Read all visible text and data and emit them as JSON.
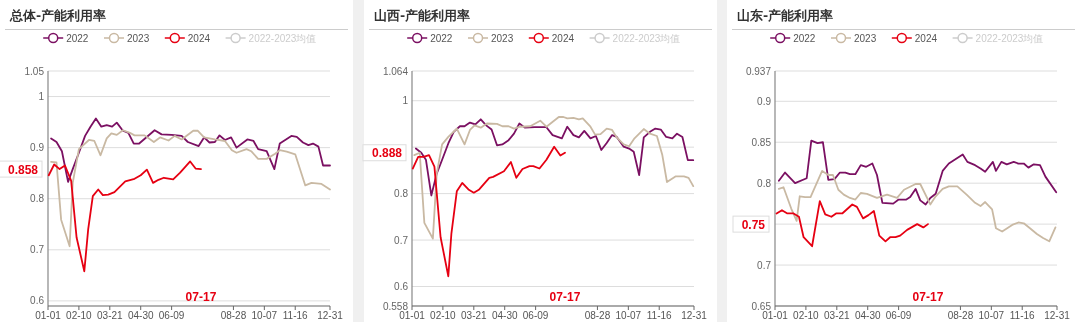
{
  "chart_data": [
    {
      "type": "line",
      "title": "总体-产能利用率",
      "grid": "y",
      "legend": "top",
      "xlim": [
        "--01-01",
        "--12-31"
      ],
      "xticks": [
        {
          "value": "--01-01",
          "label": "01-01"
        },
        {
          "value": "--02-10",
          "label": "02-10"
        },
        {
          "value": "--03-21",
          "label": "03-21"
        },
        {
          "value": "--04-30",
          "label": "04-30"
        },
        {
          "value": "--06-09",
          "label": "06-09"
        },
        {
          "value": "--08-28",
          "label": "08-28"
        },
        {
          "value": "--10-07",
          "label": "10-07"
        },
        {
          "value": "--11-16",
          "label": "11-16"
        },
        {
          "value": "--12-31",
          "label": "12-31"
        }
      ],
      "ylim": [
        0.59,
        1.05
      ],
      "yticks": [
        0.6,
        0.7,
        0.8,
        0.9,
        1,
        1.05
      ],
      "annotations": [
        "0.858",
        "07-17"
      ],
      "series": [
        {
          "name": "2022",
          "color": "#7b1062",
          "x": [
            "--01-05",
            "--01-12",
            "--01-19",
            "--01-27",
            "--02-02",
            "--02-10",
            "--02-18",
            "--02-25",
            "--03-03",
            "--03-10",
            "--03-17",
            "--03-24",
            "--03-30",
            "--04-07",
            "--04-14",
            "--04-21",
            "--04-28",
            "--05-18",
            "--05-27",
            "--06-09",
            "--06-22",
            "--06-30",
            "--07-14",
            "--07-21",
            "--07-28",
            "--08-04",
            "--08-10",
            "--08-17",
            "--08-25",
            "--09-01",
            "--09-15",
            "--09-23",
            "--09-29",
            "--10-10",
            "--10-20",
            "--10-27",
            "--11-11",
            "--11-18",
            "--11-26",
            "--12-03",
            "--12-09",
            "--12-16",
            "--12-22",
            "--12-31"
          ],
          "values": [
            0.918,
            0.911,
            0.893,
            0.833,
            0.858,
            0.89,
            0.923,
            0.941,
            0.957,
            0.941,
            0.944,
            0.941,
            0.949,
            0.933,
            0.929,
            0.908,
            0.908,
            0.934,
            0.926,
            0.925,
            0.923,
            0.911,
            0.903,
            0.92,
            0.91,
            0.911,
            0.924,
            0.915,
            0.92,
            0.9,
            0.916,
            0.913,
            0.897,
            0.893,
            0.858,
            0.908,
            0.923,
            0.921,
            0.91,
            0.905,
            0.908,
            0.902,
            0.865,
            0.865
          ]
        },
        {
          "name": "2023",
          "color": "#c9b9a3",
          "x": [
            "--01-05",
            "--01-12",
            "--01-18",
            "--01-29",
            "--02-02",
            "--02-10",
            "--02-23",
            "--03-01",
            "--03-09",
            "--03-17",
            "--03-23",
            "--03-30",
            "--04-07",
            "--04-16",
            "--04-22",
            "--05-05",
            "--05-17",
            "--05-25",
            "--06-05",
            "--06-13",
            "--06-22",
            "--07-07",
            "--07-13",
            "--07-21",
            "--08-04",
            "--08-17",
            "--08-26",
            "--09-01",
            "--09-14",
            "--09-20",
            "--09-29",
            "--10-10",
            "--10-21",
            "--10-27",
            "--11-05",
            "--11-16",
            "--11-29",
            "--12-07",
            "--12-20",
            "--12-31"
          ],
          "values": [
            0.872,
            0.871,
            0.759,
            0.707,
            0.831,
            0.897,
            0.915,
            0.913,
            0.885,
            0.918,
            0.928,
            0.925,
            0.934,
            0.929,
            0.924,
            0.924,
            0.911,
            0.92,
            0.914,
            0.923,
            0.916,
            0.933,
            0.933,
            0.92,
            0.916,
            0.913,
            0.895,
            0.89,
            0.897,
            0.893,
            0.878,
            0.878,
            0.888,
            0.895,
            0.892,
            0.887,
            0.826,
            0.831,
            0.829,
            0.818
          ]
        },
        {
          "name": "2024",
          "color": "#e60012",
          "x": [
            "--01-02",
            "--01-09",
            "--01-16",
            "--01-23",
            "--01-31",
            "--02-07",
            "--02-17",
            "--02-22",
            "--02-28",
            "--03-06",
            "--03-12",
            "--03-19",
            "--03-27",
            "--04-10",
            "--04-22",
            "--04-30",
            "--05-08",
            "--05-16",
            "--05-23",
            "--05-30",
            "--06-11",
            "--06-20",
            "--07-03",
            "--07-10",
            "--07-17"
          ],
          "values": [
            0.846,
            0.867,
            0.858,
            0.865,
            0.835,
            0.724,
            0.658,
            0.74,
            0.805,
            0.818,
            0.807,
            0.808,
            0.813,
            0.834,
            0.839,
            0.846,
            0.857,
            0.831,
            0.837,
            0.841,
            0.838,
            0.851,
            0.873,
            0.859,
            0.858
          ]
        },
        {
          "name": "2022-2023均值",
          "color": "#cccccc"
        }
      ]
    },
    {
      "type": "line",
      "title": "山西-产能利用率",
      "grid": "y",
      "legend": "top",
      "xlim": [
        "--01-01",
        "--12-31"
      ],
      "xticks": [
        {
          "value": "--01-01",
          "label": "01-01"
        },
        {
          "value": "--02-10",
          "label": "02-10"
        },
        {
          "value": "--03-21",
          "label": "03-21"
        },
        {
          "value": "--04-30",
          "label": "04-30"
        },
        {
          "value": "--06-09",
          "label": "06-09"
        },
        {
          "value": "--08-28",
          "label": "08-28"
        },
        {
          "value": "--10-07",
          "label": "10-07"
        },
        {
          "value": "--11-16",
          "label": "11-16"
        },
        {
          "value": "--12-31",
          "label": "12-31"
        }
      ],
      "ylim": [
        0.558,
        1.064
      ],
      "yticks": [
        0.558,
        0.6,
        0.7,
        0.8,
        {
          "value": 0.9,
          "label": null
        },
        1,
        1.064
      ],
      "annotations": [
        "0.888",
        "07-17"
      ],
      "series": [
        {
          "name": "2022",
          "color": "#7b1062",
          "x": [
            "--01-06",
            "--01-13",
            "--01-19",
            "--01-26",
            "--02-02",
            "--02-09",
            "--02-17",
            "--02-24",
            "--03-03",
            "--03-09",
            "--03-16",
            "--03-23",
            "--03-30",
            "--04-06",
            "--04-13",
            "--04-20",
            "--04-27",
            "--05-05",
            "--05-12",
            "--05-19",
            "--05-26",
            "--06-08",
            "--06-23",
            "--07-01",
            "--07-13",
            "--07-20",
            "--07-28",
            "--08-04",
            "--08-11",
            "--08-19",
            "--08-26",
            "--09-02",
            "--09-09",
            "--09-16",
            "--09-22",
            "--10-01",
            "--10-08",
            "--10-14",
            "--10-21",
            "--10-27",
            "--11-04",
            "--11-11",
            "--11-18",
            "--11-25",
            "--12-03",
            "--12-09",
            "--12-16",
            "--12-23",
            "--12-30"
          ],
          "values": [
            0.897,
            0.888,
            0.873,
            0.796,
            0.843,
            0.873,
            0.908,
            0.933,
            0.945,
            0.945,
            0.953,
            0.949,
            0.96,
            0.947,
            0.938,
            0.904,
            0.906,
            0.915,
            0.929,
            0.951,
            0.942,
            0.943,
            0.943,
            0.926,
            0.919,
            0.944,
            0.926,
            0.921,
            0.935,
            0.919,
            0.924,
            0.894,
            0.909,
            0.926,
            0.922,
            0.901,
            0.897,
            0.89,
            0.84,
            0.921,
            0.933,
            0.94,
            0.938,
            0.922,
            0.919,
            0.929,
            0.922,
            0.872,
            0.872
          ]
        },
        {
          "name": "2023",
          "color": "#c9b9a3",
          "x": [
            "--01-04",
            "--01-11",
            "--01-17",
            "--01-28",
            "--02-02",
            "--02-09",
            "--02-17",
            "--02-28",
            "--03-09",
            "--03-16",
            "--03-22",
            "--03-30",
            "--04-07",
            "--04-20",
            "--04-27",
            "--05-05",
            "--05-12",
            "--05-20",
            "--06-02",
            "--06-15",
            "--06-23",
            "--07-09",
            "--07-15",
            "--07-20",
            "--07-28",
            "--08-04",
            "--08-09",
            "--08-19",
            "--08-25",
            "--09-01",
            "--09-09",
            "--09-16",
            "--09-22",
            "--10-01",
            "--10-08",
            "--10-15",
            "--10-27",
            "--11-04",
            "--11-13",
            "--11-20",
            "--11-26",
            "--12-07",
            "--12-18",
            "--12-24",
            "--12-30"
          ],
          "values": [
            0.883,
            0.888,
            0.737,
            0.703,
            0.843,
            0.906,
            0.922,
            0.94,
            0.906,
            0.937,
            0.947,
            0.942,
            0.951,
            0.95,
            0.945,
            0.945,
            0.94,
            0.944,
            0.945,
            0.957,
            0.944,
            0.965,
            0.965,
            0.962,
            0.963,
            0.96,
            0.962,
            0.944,
            0.927,
            0.928,
            0.94,
            0.937,
            0.921,
            0.906,
            0.902,
            0.919,
            0.939,
            0.929,
            0.924,
            0.883,
            0.825,
            0.837,
            0.837,
            0.834,
            0.816
          ]
        },
        {
          "name": "2024",
          "color": "#e60012",
          "x": [
            "--01-02",
            "--01-09",
            "--01-16",
            "--01-23",
            "--01-30",
            "--02-07",
            "--02-17",
            "--02-21",
            "--02-28",
            "--03-06",
            "--03-14",
            "--03-21",
            "--03-28",
            "--04-10",
            "--04-15",
            "--04-29",
            "--05-08",
            "--05-15",
            "--05-23",
            "--06-01",
            "--06-06",
            "--06-14",
            "--06-23",
            "--07-03",
            "--07-11",
            "--07-17"
          ],
          "values": [
            0.854,
            0.879,
            0.879,
            0.883,
            0.858,
            0.706,
            0.622,
            0.714,
            0.805,
            0.823,
            0.809,
            0.802,
            0.809,
            0.834,
            0.836,
            0.848,
            0.868,
            0.834,
            0.853,
            0.859,
            0.859,
            0.854,
            0.873,
            0.901,
            0.882,
            0.888
          ]
        },
        {
          "name": "2022-2023均值",
          "color": "#cccccc"
        }
      ]
    },
    {
      "type": "line",
      "title": "山东-产能利用率",
      "grid": "y",
      "legend": "top",
      "xlim": [
        "--01-01",
        "--12-31"
      ],
      "xticks": [
        {
          "value": "--01-01",
          "label": "01-01"
        },
        {
          "value": "--02-10",
          "label": "02-10"
        },
        {
          "value": "--03-21",
          "label": "03-21"
        },
        {
          "value": "--04-30",
          "label": "04-30"
        },
        {
          "value": "--06-09",
          "label": "06-09"
        },
        {
          "value": "--08-28",
          "label": "08-28"
        },
        {
          "value": "--10-07",
          "label": "10-07"
        },
        {
          "value": "--11-16",
          "label": "11-16"
        },
        {
          "value": "--12-31",
          "label": "12-31"
        }
      ],
      "ylim": [
        0.65,
        0.937
      ],
      "yticks": [
        0.65,
        0.7,
        {
          "value": 0.75,
          "label": null
        },
        0.8,
        0.85,
        0.9,
        0.937
      ],
      "annotations": [
        "0.75",
        "07-17"
      ],
      "series": [
        {
          "name": "2022",
          "color": "#7b1062",
          "x": [
            "--01-06",
            "--01-14",
            "--01-27",
            "--02-11",
            "--02-17",
            "--02-25",
            "--03-03",
            "--03-10",
            "--03-18",
            "--03-25",
            "--04-01",
            "--04-07",
            "--04-14",
            "--04-21",
            "--04-28",
            "--05-06",
            "--05-12",
            "--05-19",
            "--06-02",
            "--06-09",
            "--06-19",
            "--06-24",
            "--07-01",
            "--07-07",
            "--07-14",
            "--07-20",
            "--07-27",
            "--08-05",
            "--08-13",
            "--08-31",
            "--09-06",
            "--09-16",
            "--09-23",
            "--09-29",
            "--10-09",
            "--10-13",
            "--10-20",
            "--10-27",
            "--11-05",
            "--11-11",
            "--11-18",
            "--11-24",
            "--12-01",
            "--12-09",
            "--12-16",
            "--12-30"
          ],
          "values": [
            0.803,
            0.813,
            0.8,
            0.806,
            0.852,
            0.849,
            0.85,
            0.804,
            0.805,
            0.813,
            0.813,
            0.811,
            0.811,
            0.822,
            0.82,
            0.824,
            0.81,
            0.776,
            0.775,
            0.78,
            0.78,
            0.783,
            0.793,
            0.779,
            0.774,
            0.782,
            0.787,
            0.815,
            0.824,
            0.835,
            0.826,
            0.822,
            0.818,
            0.814,
            0.826,
            0.815,
            0.826,
            0.823,
            0.826,
            0.824,
            0.824,
            0.819,
            0.823,
            0.822,
            0.808,
            0.789
          ]
        },
        {
          "name": "2023",
          "color": "#c9b9a3",
          "x": [
            "--01-06",
            "--01-12",
            "--01-22",
            "--01-29",
            "--02-02",
            "--02-09",
            "--02-16",
            "--03-02",
            "--03-10",
            "--03-16",
            "--03-23",
            "--03-30",
            "--04-07",
            "--04-14",
            "--04-21",
            "--04-29",
            "--05-12",
            "--05-25",
            "--06-07",
            "--06-16",
            "--07-01",
            "--07-07",
            "--07-20",
            "--07-27",
            "--08-05",
            "--08-13",
            "--08-24",
            "--09-05",
            "--09-16",
            "--09-23",
            "--09-29",
            "--10-08",
            "--10-13",
            "--10-21",
            "--11-03",
            "--11-11",
            "--11-18",
            "--11-26",
            "--12-05",
            "--12-13",
            "--12-21",
            "--12-29"
          ],
          "values": [
            0.793,
            0.795,
            0.769,
            0.754,
            0.784,
            0.783,
            0.783,
            0.815,
            0.81,
            0.81,
            0.792,
            0.786,
            0.782,
            0.78,
            0.788,
            0.787,
            0.782,
            0.786,
            0.782,
            0.792,
            0.799,
            0.799,
            0.774,
            0.784,
            0.793,
            0.796,
            0.796,
            0.786,
            0.776,
            0.772,
            0.777,
            0.768,
            0.745,
            0.741,
            0.749,
            0.752,
            0.751,
            0.745,
            0.738,
            0.733,
            0.729,
            0.746
          ]
        },
        {
          "name": "2024",
          "color": "#e60012",
          "x": [
            "--01-03",
            "--01-10",
            "--01-17",
            "--01-25",
            "--02-01",
            "--02-07",
            "--02-18",
            "--02-28",
            "--03-06",
            "--03-14",
            "--03-20",
            "--03-28",
            "--04-10",
            "--04-16",
            "--04-24",
            "--05-01",
            "--05-08",
            "--05-15",
            "--05-23",
            "--05-29",
            "--06-05",
            "--06-11",
            "--06-20",
            "--07-03",
            "--07-11",
            "--07-17"
          ],
          "values": [
            0.763,
            0.767,
            0.763,
            0.763,
            0.759,
            0.734,
            0.723,
            0.778,
            0.762,
            0.759,
            0.763,
            0.763,
            0.774,
            0.771,
            0.757,
            0.761,
            0.766,
            0.736,
            0.729,
            0.734,
            0.734,
            0.736,
            0.743,
            0.75,
            0.746,
            0.75
          ]
        },
        {
          "name": "2022-2023均值",
          "color": "#cccccc"
        }
      ]
    }
  ]
}
